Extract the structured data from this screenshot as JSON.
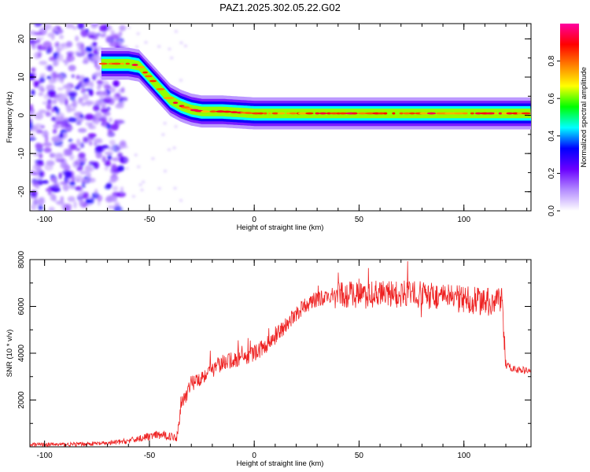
{
  "chart_data": [
    {
      "type": "heatmap",
      "title": "PAZ1.2025.302.05.22.G02",
      "xlabel": "Height of straight line (km)",
      "ylabel": "Frequency (Hz)",
      "xlim": [
        -107,
        132
      ],
      "ylim": [
        -25,
        24
      ],
      "xticks": [
        -100,
        -50,
        0,
        50,
        100
      ],
      "xtick_labels": [
        "-100",
        "-50",
        "0",
        "50",
        "100"
      ],
      "yticks": [
        20,
        10,
        0,
        -10,
        -20
      ],
      "ytick_labels": [
        "20",
        "10",
        "0",
        "-10",
        "-20"
      ],
      "ridge": {
        "description": "frequency of spectral maximum vs height",
        "x": [
          -73,
          -60,
          -55,
          -50,
          -45,
          -40,
          -35,
          -30,
          -25,
          -15,
          0,
          50,
          100,
          132
        ],
        "y": [
          13.5,
          13.5,
          13,
          10,
          7,
          4,
          2.5,
          1.5,
          1,
          1,
          0.5,
          0.5,
          0.5,
          0.5
        ]
      },
      "noise_region_x": [
        -107,
        -62
      ],
      "colorbar": {
        "label": "Normalized spectral amplitude",
        "range": [
          0,
          1
        ],
        "ticks": [
          0.0,
          0.2,
          0.4,
          0.6,
          0.8
        ],
        "tick_labels": [
          "0.0",
          "0.2",
          "0.4",
          "0.6",
          "0.8"
        ],
        "colors": [
          "#ffffff",
          "#b48cff",
          "#6a00ff",
          "#0000ff",
          "#00ffff",
          "#00ff00",
          "#ffff00",
          "#ff8000",
          "#ff0000",
          "#ff00a0"
        ]
      }
    },
    {
      "type": "line",
      "xlabel": "Height of straight line (km)",
      "ylabel": "SNR (10 * v/v)",
      "xlim": [
        -107,
        132
      ],
      "ylim": [
        0,
        8000
      ],
      "xticks": [
        -100,
        -50,
        0,
        50,
        100
      ],
      "xtick_labels": [
        "-100",
        "-50",
        "0",
        "50",
        "100"
      ],
      "yticks": [
        8000,
        6000,
        4000,
        2000
      ],
      "ytick_labels": [
        "8000",
        "6000",
        "4000",
        "2000"
      ],
      "series": [
        {
          "name": "SNR",
          "color": "#ee2222",
          "x": [
            -107,
            -90,
            -70,
            -60,
            -50,
            -45,
            -40,
            -37,
            -35,
            -30,
            -25,
            -20,
            -15,
            -10,
            -5,
            0,
            5,
            10,
            15,
            20,
            25,
            30,
            35,
            40,
            50,
            60,
            70,
            80,
            90,
            100,
            110,
            118,
            120,
            122,
            125,
            132
          ],
          "y": [
            100,
            100,
            150,
            250,
            450,
            500,
            450,
            400,
            1800,
            2700,
            3000,
            3300,
            3600,
            3700,
            3800,
            4000,
            4300,
            4700,
            5200,
            5700,
            6100,
            6300,
            6400,
            6500,
            6500,
            6500,
            6550,
            6500,
            6400,
            6300,
            6200,
            6200,
            3500,
            3400,
            3300,
            3250
          ]
        }
      ]
    }
  ]
}
